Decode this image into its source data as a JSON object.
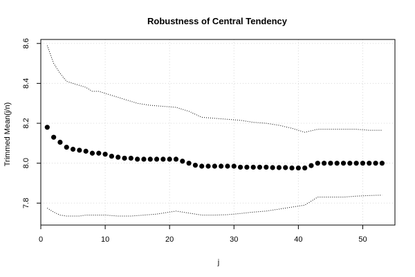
{
  "chart_data": {
    "type": "scatter",
    "title": "Robustness of Central Tendency",
    "xlabel": "j",
    "ylabel": "Trimmed Mean(j/n)",
    "xlim": [
      0,
      55
    ],
    "ylim": [
      7.69,
      8.62
    ],
    "x_ticks": [
      0,
      10,
      20,
      30,
      40,
      50
    ],
    "y_ticks": [
      7.8,
      8.0,
      8.2,
      8.4,
      8.6
    ],
    "grid": true,
    "series": [
      {
        "role": "trimmed-mean",
        "style": "points",
        "x": [
          1,
          2,
          3,
          4,
          5,
          6,
          7,
          8,
          9,
          10,
          11,
          12,
          13,
          14,
          15,
          16,
          17,
          18,
          19,
          20,
          21,
          22,
          23,
          24,
          25,
          26,
          27,
          28,
          29,
          30,
          31,
          32,
          33,
          34,
          35,
          36,
          37,
          38,
          39,
          40,
          41,
          42,
          43,
          44,
          45,
          46,
          47,
          48,
          49,
          50,
          51,
          52,
          53
        ],
        "values": [
          8.18,
          8.13,
          8.105,
          8.08,
          8.07,
          8.065,
          8.06,
          8.05,
          8.05,
          8.045,
          8.035,
          8.03,
          8.025,
          8.025,
          8.02,
          8.02,
          8.02,
          8.02,
          8.02,
          8.02,
          8.02,
          8.01,
          8.0,
          7.99,
          7.985,
          7.985,
          7.985,
          7.985,
          7.985,
          7.985,
          7.98,
          7.98,
          7.98,
          7.98,
          7.98,
          7.978,
          7.978,
          7.978,
          7.976,
          7.976,
          7.976,
          7.988,
          8.0,
          8.0,
          8.0,
          8.0,
          8.0,
          8.0,
          8.0,
          8.0,
          8.0,
          8.0,
          8.0
        ]
      },
      {
        "role": "upper-bound",
        "style": "dotted-line",
        "x": [
          1,
          2,
          3,
          4,
          5,
          6,
          7,
          8,
          9,
          10,
          12,
          13,
          15,
          17,
          19,
          21,
          23,
          25,
          27,
          29,
          31,
          33,
          35,
          37,
          39,
          41,
          43,
          45,
          47,
          49,
          51,
          53
        ],
        "values": [
          8.59,
          8.5,
          8.45,
          8.41,
          8.4,
          8.39,
          8.38,
          8.36,
          8.36,
          8.35,
          8.33,
          8.32,
          8.3,
          8.29,
          8.285,
          8.28,
          8.26,
          8.23,
          8.225,
          8.22,
          8.215,
          8.205,
          8.2,
          8.19,
          8.175,
          8.155,
          8.17,
          8.17,
          8.17,
          8.17,
          8.165,
          8.165
        ]
      },
      {
        "role": "lower-bound",
        "style": "dotted-line",
        "x": [
          1,
          2,
          3,
          4,
          5,
          6,
          7,
          8,
          9,
          10,
          12,
          14,
          16,
          18,
          20,
          21,
          23,
          25,
          27,
          29,
          31,
          33,
          35,
          37,
          39,
          41,
          43,
          45,
          47,
          49,
          51,
          53
        ],
        "values": [
          7.775,
          7.755,
          7.74,
          7.735,
          7.735,
          7.735,
          7.74,
          7.74,
          7.74,
          7.74,
          7.735,
          7.735,
          7.74,
          7.745,
          7.755,
          7.76,
          7.75,
          7.74,
          7.74,
          7.742,
          7.748,
          7.755,
          7.76,
          7.77,
          7.78,
          7.79,
          7.83,
          7.83,
          7.83,
          7.835,
          7.838,
          7.84
        ]
      }
    ]
  }
}
